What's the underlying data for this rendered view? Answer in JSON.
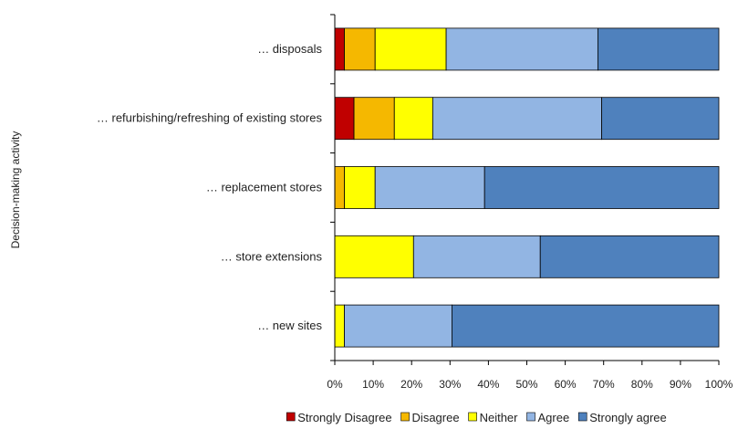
{
  "chart_data": {
    "type": "bar",
    "orientation": "horizontal",
    "stacked": true,
    "percent": true,
    "categories": [
      "… disposals",
      "… refurbishing/refreshing of existing stores",
      "… replacement stores",
      "… store extensions",
      "… new sites"
    ],
    "series": [
      {
        "name": "Strongly Disagree",
        "color": "#c00000",
        "values": [
          2.5,
          5,
          0,
          0,
          0
        ]
      },
      {
        "name": "Disagree",
        "color": "#f5b800",
        "values": [
          8,
          10.5,
          2.5,
          0,
          0
        ]
      },
      {
        "name": "Neither",
        "color": "#ffff00",
        "values": [
          18.5,
          10,
          8,
          20.5,
          2.5
        ]
      },
      {
        "name": "Agree",
        "color": "#92b5e3",
        "values": [
          39.5,
          44,
          28.5,
          33,
          28
        ]
      },
      {
        "name": "Strongly agree",
        "color": "#4f81bd",
        "values": [
          31.5,
          30.5,
          61,
          46.5,
          69.5
        ]
      }
    ],
    "xlim": [
      0,
      100
    ],
    "xticks": [
      "0%",
      "10%",
      "20%",
      "30%",
      "40%",
      "50%",
      "60%",
      "70%",
      "80%",
      "90%",
      "100%"
    ],
    "ylabel": "Decision-making activity",
    "xlabel": "",
    "grid": false,
    "legend_position": "bottom"
  }
}
